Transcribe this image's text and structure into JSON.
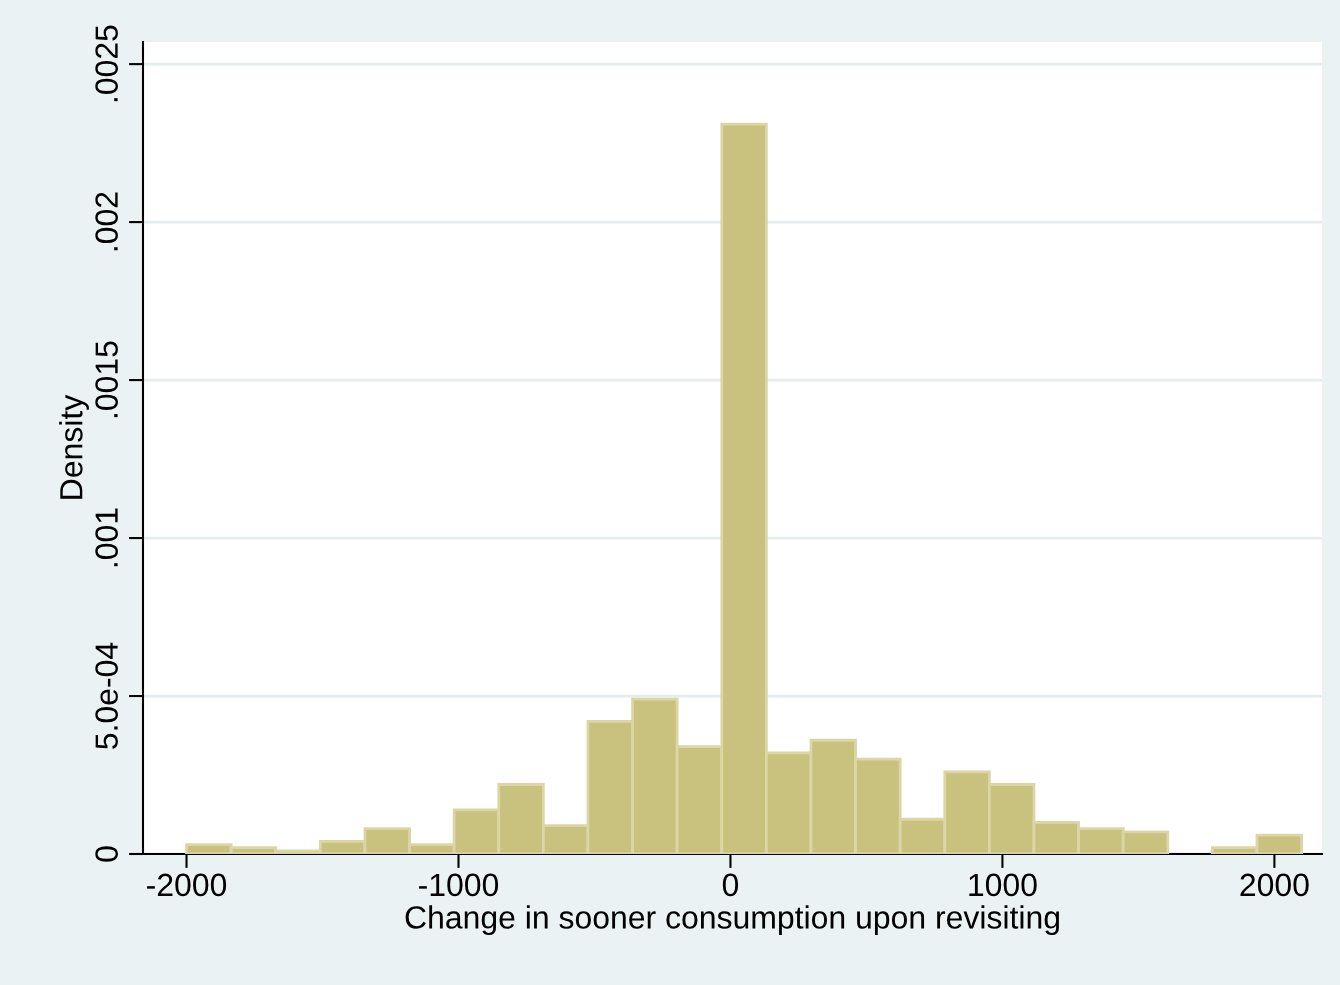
{
  "chart_data": {
    "type": "histogram",
    "xlabel": "Change in sooner consumption upon revisiting",
    "ylabel": "Density",
    "bins": [
      -2000,
      -1836,
      -1672,
      -1508,
      -1344,
      -1180,
      -1016,
      -852,
      -688,
      -524,
      -360,
      -196,
      -32,
      132,
      296,
      460,
      624,
      788,
      952,
      1116,
      1280,
      1444,
      1608,
      1772,
      1936,
      2100
    ],
    "values": [
      3e-05,
      2e-05,
      1e-05,
      4e-05,
      8e-05,
      3e-05,
      0.00014,
      0.00022,
      9e-05,
      0.00042,
      0.00049,
      0.00034,
      0.00231,
      0.00032,
      0.00036,
      0.0003,
      0.00011,
      0.00026,
      0.00022,
      0.0001,
      8e-05,
      7e-05,
      0,
      2e-05,
      6e-05
    ],
    "color": "#c9c27f",
    "xlim": [
      -2160,
      2175
    ],
    "xticks": [
      -2000,
      -1000,
      0,
      1000,
      2000
    ],
    "ylim": [
      0,
      0.00257
    ],
    "yticks": [
      0,
      {
        "value": 0.0005,
        "label": "5.0e-04"
      },
      {
        "value": 0.001,
        "label": ".001"
      },
      {
        "value": 0.0015,
        "label": ".0015"
      },
      {
        "value": 0.002,
        "label": ".002"
      },
      {
        "value": 0.0025,
        "label": ".0025"
      }
    ],
    "grid": "y"
  }
}
